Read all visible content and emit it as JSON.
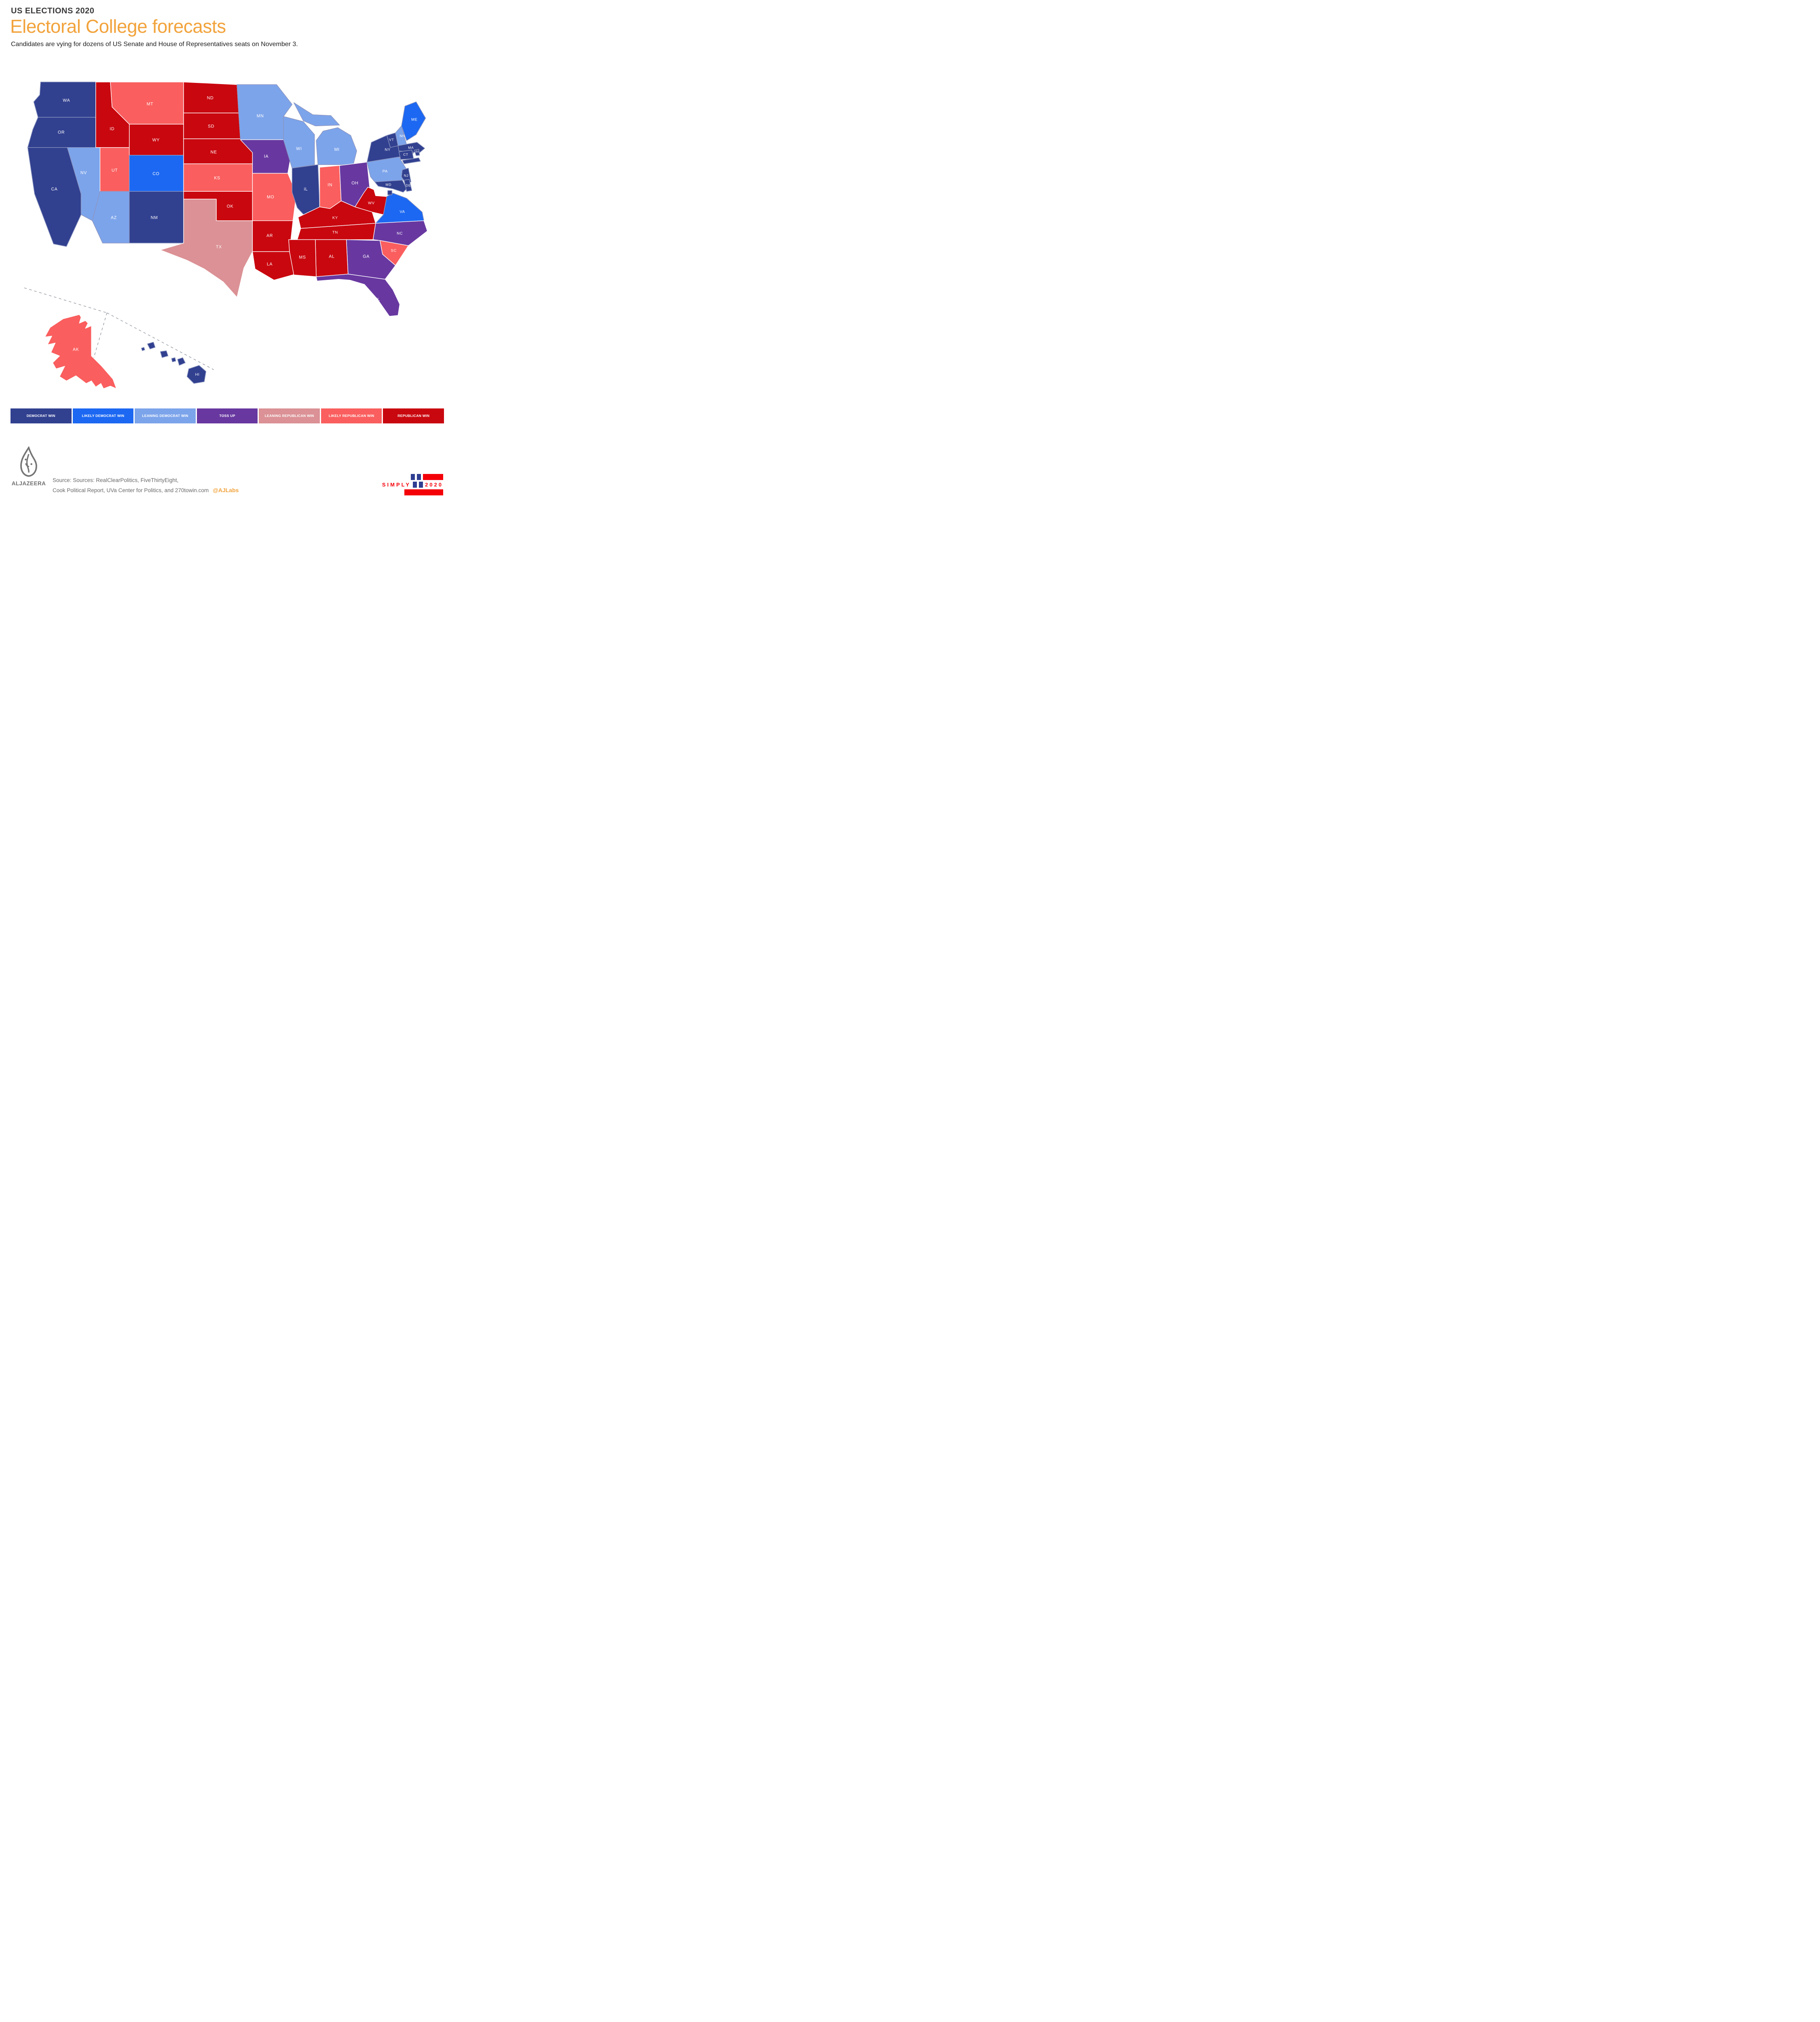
{
  "header": {
    "kicker": "US ELECTIONS 2020",
    "title": "Electoral College forecasts",
    "subtitle": "Candidates are vying for dozens of US Senate and House of Representatives seats on November 3."
  },
  "colors": {
    "dem_win": "#31408F",
    "likely_dem": "#1C68F2",
    "lean_dem": "#7CA4EB",
    "toss_up": "#6838A0",
    "lean_rep": "#DB9195",
    "likely_rep": "#FA5E5E",
    "rep_win": "#C9070F",
    "accent_orange": "#F2A33C",
    "badge_blue": "#2F3E92",
    "badge_red": "#F40009"
  },
  "legend": [
    {
      "label": "DEMOCRAT WIN",
      "category": "dem_win"
    },
    {
      "label": "LIKELY DEMOCRAT WIN",
      "category": "likely_dem"
    },
    {
      "label": "LEANING DEMOCRAT WIN",
      "category": "lean_dem"
    },
    {
      "label": "TOSS UP",
      "category": "toss_up"
    },
    {
      "label": "LEANING REPUBLICAN WIN",
      "category": "lean_rep"
    },
    {
      "label": "LIKELY REPUBLICAN WIN",
      "category": "likely_rep"
    },
    {
      "label": "REPUBLICAN WIN",
      "category": "rep_win"
    }
  ],
  "map": {
    "states": [
      {
        "id": "WA",
        "label": "WA",
        "category": "dem_win"
      },
      {
        "id": "OR",
        "label": "OR",
        "category": "dem_win"
      },
      {
        "id": "CA",
        "label": "CA",
        "category": "dem_win"
      },
      {
        "id": "NV",
        "label": "NV",
        "category": "lean_dem"
      },
      {
        "id": "ID",
        "label": "ID",
        "category": "rep_win"
      },
      {
        "id": "MT",
        "label": "MT",
        "category": "likely_rep"
      },
      {
        "id": "WY",
        "label": "WY",
        "category": "rep_win"
      },
      {
        "id": "UT",
        "label": "UT",
        "category": "likely_rep"
      },
      {
        "id": "CO",
        "label": "CO",
        "category": "likely_dem"
      },
      {
        "id": "AZ",
        "label": "AZ",
        "category": "lean_dem"
      },
      {
        "id": "NM",
        "label": "NM",
        "category": "dem_win"
      },
      {
        "id": "ND",
        "label": "ND",
        "category": "rep_win"
      },
      {
        "id": "SD",
        "label": "SD",
        "category": "rep_win"
      },
      {
        "id": "NE",
        "label": "NE",
        "category": "rep_win"
      },
      {
        "id": "KS",
        "label": "KS",
        "category": "likely_rep"
      },
      {
        "id": "OK",
        "label": "OK",
        "category": "rep_win"
      },
      {
        "id": "TX",
        "label": "TX",
        "category": "lean_rep"
      },
      {
        "id": "MN",
        "label": "MN",
        "category": "lean_dem"
      },
      {
        "id": "IA",
        "label": "IA",
        "category": "toss_up"
      },
      {
        "id": "MO",
        "label": "MO",
        "category": "likely_rep"
      },
      {
        "id": "AR",
        "label": "AR",
        "category": "rep_win"
      },
      {
        "id": "LA",
        "label": "LA",
        "category": "rep_win"
      },
      {
        "id": "WI",
        "label": "WI",
        "category": "lean_dem"
      },
      {
        "id": "IL",
        "label": "iL",
        "category": "dem_win"
      },
      {
        "id": "MI",
        "label": "MI",
        "category": "lean_dem"
      },
      {
        "id": "IN",
        "label": "IN",
        "category": "likely_rep"
      },
      {
        "id": "OH",
        "label": "OH",
        "category": "toss_up"
      },
      {
        "id": "KY",
        "label": "KY",
        "category": "rep_win"
      },
      {
        "id": "TN",
        "label": "TN",
        "category": "rep_win"
      },
      {
        "id": "WV",
        "label": "WV",
        "category": "rep_win"
      },
      {
        "id": "VA",
        "label": "VA",
        "category": "likely_dem"
      },
      {
        "id": "NC",
        "label": "NC",
        "category": "toss_up"
      },
      {
        "id": "SC",
        "label": "SC",
        "category": "likely_rep"
      },
      {
        "id": "GA",
        "label": "GA",
        "category": "toss_up"
      },
      {
        "id": "AL",
        "label": "AL",
        "category": "rep_win"
      },
      {
        "id": "MS",
        "label": "MS",
        "category": "rep_win"
      },
      {
        "id": "FL",
        "label": "FL",
        "category": "toss_up"
      },
      {
        "id": "PA",
        "label": "PA",
        "category": "lean_dem"
      },
      {
        "id": "NY",
        "label": "NY",
        "category": "dem_win"
      },
      {
        "id": "NJ",
        "label": "NJ",
        "category": "dem_win"
      },
      {
        "id": "VT",
        "label": "VT",
        "category": "dem_win"
      },
      {
        "id": "NH",
        "label": "NH",
        "category": "lean_dem"
      },
      {
        "id": "ME",
        "label": "ME",
        "category": "likely_dem"
      },
      {
        "id": "MA",
        "label": "MA",
        "category": "dem_win"
      },
      {
        "id": "CT",
        "label": "CT",
        "category": "dem_win"
      },
      {
        "id": "RI",
        "label": "RI",
        "category": "dem_win"
      },
      {
        "id": "MD",
        "label": "MD",
        "category": "dem_win"
      },
      {
        "id": "DE",
        "label": "DE",
        "category": "dem_win"
      },
      {
        "id": "DC",
        "label": "DC",
        "category": "dem_win"
      },
      {
        "id": "AK",
        "label": "AK",
        "category": "likely_rep"
      },
      {
        "id": "HI",
        "label": "HI",
        "category": "dem_win"
      }
    ]
  },
  "footer": {
    "logo_text": "ALJAZEERA",
    "source_line1": "Source: Sources: RealClearPolitics, FiveThirtyEight,",
    "source_line2": "Cook Political Report, UVa Center for Politics, and 270towin.com",
    "handle": "@AJLabs",
    "badge": {
      "word1": "SIMPLY",
      "word2": "2020"
    }
  }
}
